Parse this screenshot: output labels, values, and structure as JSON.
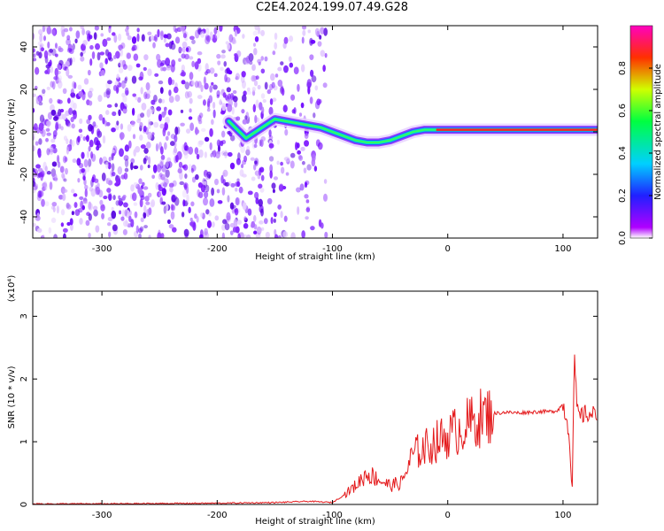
{
  "title": "C2E4.2024.199.07.49.G28",
  "chart_data": [
    {
      "type": "heatmap",
      "title": "C2E4.2024.199.07.49.G28",
      "xlabel": "Height of straight line (km)",
      "ylabel": "Frequency (Hz)",
      "xlim": [
        -360,
        130
      ],
      "ylim": [
        -50,
        50
      ],
      "x_ticks": [
        -300,
        -200,
        -100,
        0,
        100
      ],
      "y_ticks": [
        -40,
        -20,
        0,
        20,
        40
      ],
      "ridge": {
        "x": [
          -190,
          -175,
          -150,
          -130,
          -110,
          -95,
          -80,
          -70,
          -60,
          -50,
          -40,
          -30,
          -20,
          -10,
          0,
          20,
          40,
          60,
          80,
          90,
          100,
          110,
          130
        ],
        "y": [
          5,
          -3,
          6,
          4,
          2,
          -1,
          -4,
          -5,
          -5,
          -4,
          -2,
          0,
          1,
          1,
          1,
          1,
          1,
          1,
          1,
          1,
          1,
          1,
          1
        ]
      },
      "noise_region": [
        -360,
        -105
      ],
      "colorbar": {
        "label": "Normalized spectral amplitude",
        "ticks": [
          "0.0",
          "0.2",
          "0.4",
          "0.6",
          "0.8"
        ],
        "range": [
          0,
          1
        ],
        "colormap": "rainbow"
      }
    },
    {
      "type": "line",
      "xlabel": "Height of straight line (km)",
      "ylabel": "SNR (10 * v/v)",
      "multiplier": "(x10⁴)",
      "xlim": [
        -360,
        130
      ],
      "ylim": [
        0,
        3.4
      ],
      "x_ticks": [
        -300,
        -200,
        -100,
        0,
        100
      ],
      "y_ticks": [
        0,
        1,
        2,
        3
      ],
      "series": [
        {
          "color": "#e41a1c",
          "x": [
            -360,
            -300,
            -200,
            -150,
            -120,
            -100,
            -90,
            -80,
            -70,
            -60,
            -50,
            -40,
            -30,
            -20,
            -10,
            0,
            10,
            20,
            30,
            40,
            50,
            60,
            70,
            80,
            90,
            95,
            100,
            105,
            108,
            110,
            112,
            115,
            120,
            130
          ],
          "y": [
            0.01,
            0.01,
            0.02,
            0.03,
            0.05,
            0.03,
            0.15,
            0.3,
            0.5,
            0.4,
            0.3,
            0.35,
            0.8,
            0.9,
            1.0,
            1.1,
            1.2,
            1.3,
            1.4,
            1.45,
            1.47,
            1.46,
            1.47,
            1.48,
            1.48,
            1.5,
            1.6,
            1.2,
            0.3,
            2.4,
            1.5,
            1.4,
            1.45,
            1.42
          ]
        }
      ]
    }
  ]
}
